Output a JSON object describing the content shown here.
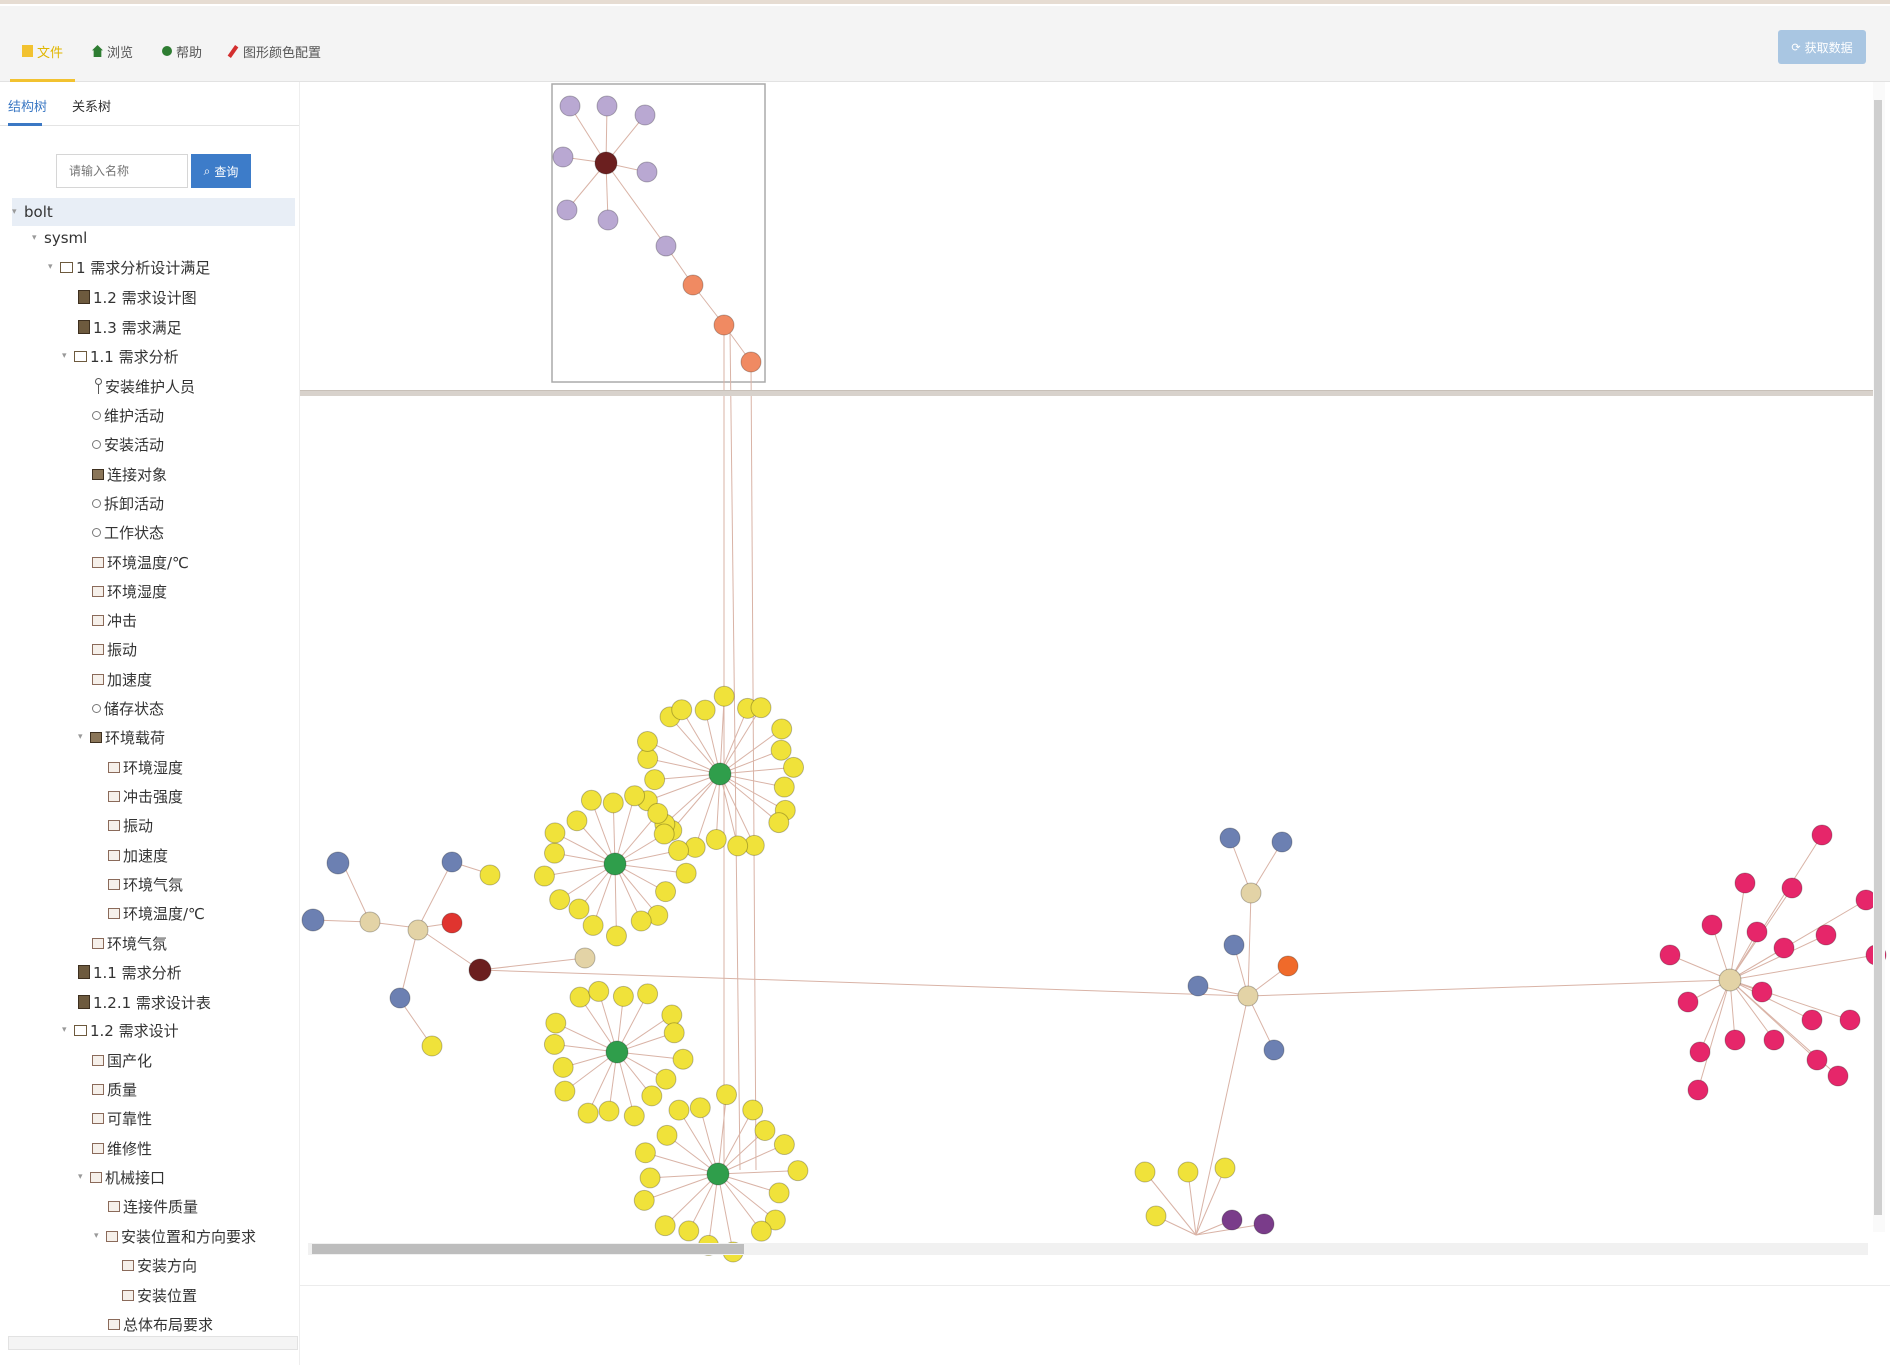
{
  "toolbar": {
    "items": [
      {
        "label": "文件",
        "icon": "file-icon"
      },
      {
        "label": "浏览",
        "icon": "home-icon"
      },
      {
        "label": "帮助",
        "icon": "help-icon"
      },
      {
        "label": "图形颜色配置",
        "icon": "pencil-icon"
      }
    ],
    "right_button": "获取数据",
    "accent_color": "#f2c230"
  },
  "left_tabs": [
    "结构树",
    "关系树"
  ],
  "search": {
    "placeholder": "请输入名称",
    "button": "查询"
  },
  "tree": {
    "root": "bolt",
    "nodes": [
      "sysml",
      "1 需求分析设计满足",
      "1.2 需求设计图",
      "1.3 需求满足",
      "1.1 需求分析",
      "安装维护人员",
      "维护活动",
      "安装活动",
      "连接对象",
      "拆卸活动",
      "工作状态",
      "环境温度/℃",
      "环境湿度",
      "冲击",
      "振动",
      "加速度",
      "储存状态",
      "环境载荷",
      "环境湿度",
      "冲击强度",
      "振动",
      "加速度",
      "环境气氛",
      "环境温度/℃",
      "环境气氛",
      "1.1 需求分析",
      "1.2.1 需求设计表",
      "1.2 需求设计",
      "国产化",
      "质量",
      "可靠性",
      "维修性",
      "机械接口",
      "连接件质量",
      "安装位置和方向要求",
      "安装方向",
      "安装位置",
      "总体布局要求"
    ]
  },
  "graph_colors": {
    "lavender": "#b9a8d2",
    "dark_red": "#6b1f1f",
    "salmon": "#f08a62",
    "yellow": "#f0e23a",
    "green": "#2f9e4b",
    "beige": "#e3d3a6",
    "steel_blue": "#6c80b2",
    "red": "#e0342f",
    "orange": "#f06a2a",
    "purple": "#7a3c8a",
    "magenta": "#e6266a",
    "edge": "#d9b3a6"
  }
}
